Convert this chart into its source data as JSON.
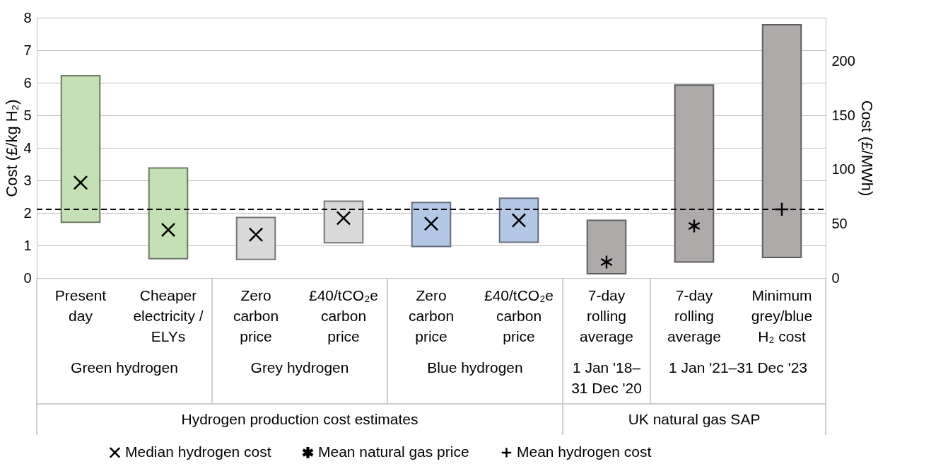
{
  "chart_data": {
    "type": "bar",
    "ylabel": "Cost (£/kg H₂)",
    "y2label": "Cost (£/MWh)",
    "categories": [
      "Present day",
      "Cheaper electricity / ELYs",
      "Zero carbon price",
      "£40/tCO₂e carbon price",
      "Zero carbon price",
      "£40/tCO₂e carbon price",
      "7-day rolling average",
      "7-day rolling average",
      "Minimum grey/blue H₂ cost"
    ],
    "ylim": [
      0,
      8
    ],
    "yticks": [
      0,
      1,
      2,
      3,
      4,
      5,
      6,
      7,
      8
    ],
    "y2lim": [
      0,
      240
    ],
    "y2ticks": [
      0,
      50,
      100,
      150,
      200
    ],
    "grid": "y",
    "legend": "bottom",
    "series": [
      {
        "base": [
          1.71,
          0.59,
          0.57,
          1.08,
          0.97,
          1.1,
          0.13,
          0.49,
          0.63
        ],
        "values": [
          4.51,
          2.79,
          1.29,
          1.28,
          1.35,
          1.35,
          1.64,
          5.44,
          7.15
        ],
        "colors": [
          "#c5e0b4",
          "#c5e0b4",
          "#d9d9d9",
          "#d9d9d9",
          "#b4c7e7",
          "#b4c7e7",
          "#aeaaaa",
          "#aeaaaa",
          "#aeaaaa"
        ]
      },
      {
        "type": "scatter",
        "name": "Median hydrogen cost",
        "color": "#000000",
        "marker": "cross",
        "values": [
          2.93,
          1.48,
          1.33,
          1.84,
          1.67,
          1.77,
          null,
          null,
          null
        ]
      },
      {
        "type": "scatter",
        "name": "Mean natural gas price",
        "color": "#000000",
        "marker": "star",
        "values": [
          null,
          null,
          null,
          null,
          null,
          null,
          0.49,
          1.6,
          null
        ]
      },
      {
        "type": "scatter",
        "name": "Mean hydrogen cost",
        "color": "#000000",
        "marker": "plus",
        "values": [
          null,
          null,
          null,
          null,
          null,
          null,
          null,
          null,
          2.11
        ]
      }
    ],
    "ref_lines": [
      {
        "axis": "y",
        "value": 2.11,
        "color": "#000000",
        "line_style": "dashed"
      }
    ],
    "annotations": [
      "Green hydrogen",
      "Grey hydrogen",
      "Blue hydrogen",
      "1 Jan '18–31 Dec '20",
      "1 Jan '21–31 Dec '23",
      "Hydrogen production cost estimates",
      "UK natural gas SAP"
    ]
  }
}
